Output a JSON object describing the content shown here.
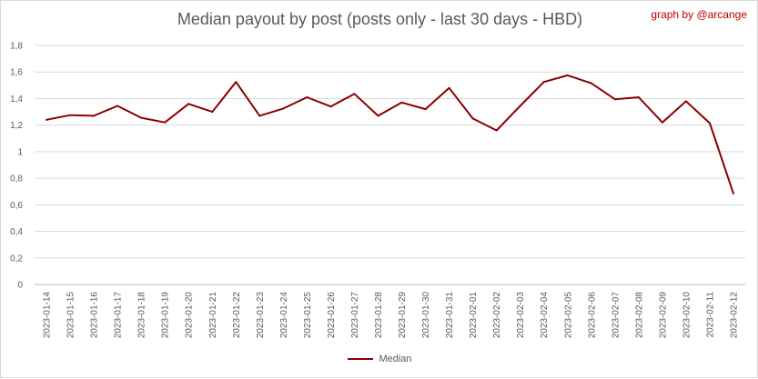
{
  "title": "Median payout by post (posts only - last 30 days - HBD)",
  "credit": "graph by @arcange",
  "chart_data": {
    "type": "line",
    "title": "Median payout by post (posts only - last 30 days - HBD)",
    "xlabel": "",
    "ylabel": "",
    "ylim": [
      0,
      1.8
    ],
    "yticks": [
      0,
      0.2,
      0.4,
      0.6,
      0.8,
      1,
      1.2,
      1.4,
      1.6,
      1.8
    ],
    "ytick_labels": [
      "0",
      "0,2",
      "0,4",
      "0,6",
      "0,8",
      "1",
      "1,2",
      "1,4",
      "1,6",
      "1,8"
    ],
    "grid": true,
    "legend_position": "bottom",
    "color": "#8b0000",
    "categories": [
      "2023-01-14",
      "2023-01-15",
      "2023-01-16",
      "2023-01-17",
      "2023-01-18",
      "2023-01-19",
      "2023-01-20",
      "2023-01-21",
      "2023-01-22",
      "2023-01-23",
      "2023-01-24",
      "2023-01-25",
      "2023-01-26",
      "2023-01-27",
      "2023-01-28",
      "2023-01-29",
      "2023-01-30",
      "2023-01-31",
      "2023-02-01",
      "2023-02-02",
      "2023-02-03",
      "2023-02-04",
      "2023-02-05",
      "2023-02-06",
      "2023-02-07",
      "2023-02-08",
      "2023-02-09",
      "2023-02-10",
      "2023-02-11",
      "2023-02-12"
    ],
    "series": [
      {
        "name": "Median",
        "values": [
          1.24,
          1.275,
          1.27,
          1.345,
          1.255,
          1.22,
          1.36,
          1.3,
          1.525,
          1.27,
          1.325,
          1.41,
          1.34,
          1.435,
          1.27,
          1.37,
          1.32,
          1.48,
          1.25,
          1.16,
          1.345,
          1.525,
          1.575,
          1.515,
          1.395,
          1.41,
          1.22,
          1.38,
          1.215,
          0.685
        ]
      }
    ]
  }
}
